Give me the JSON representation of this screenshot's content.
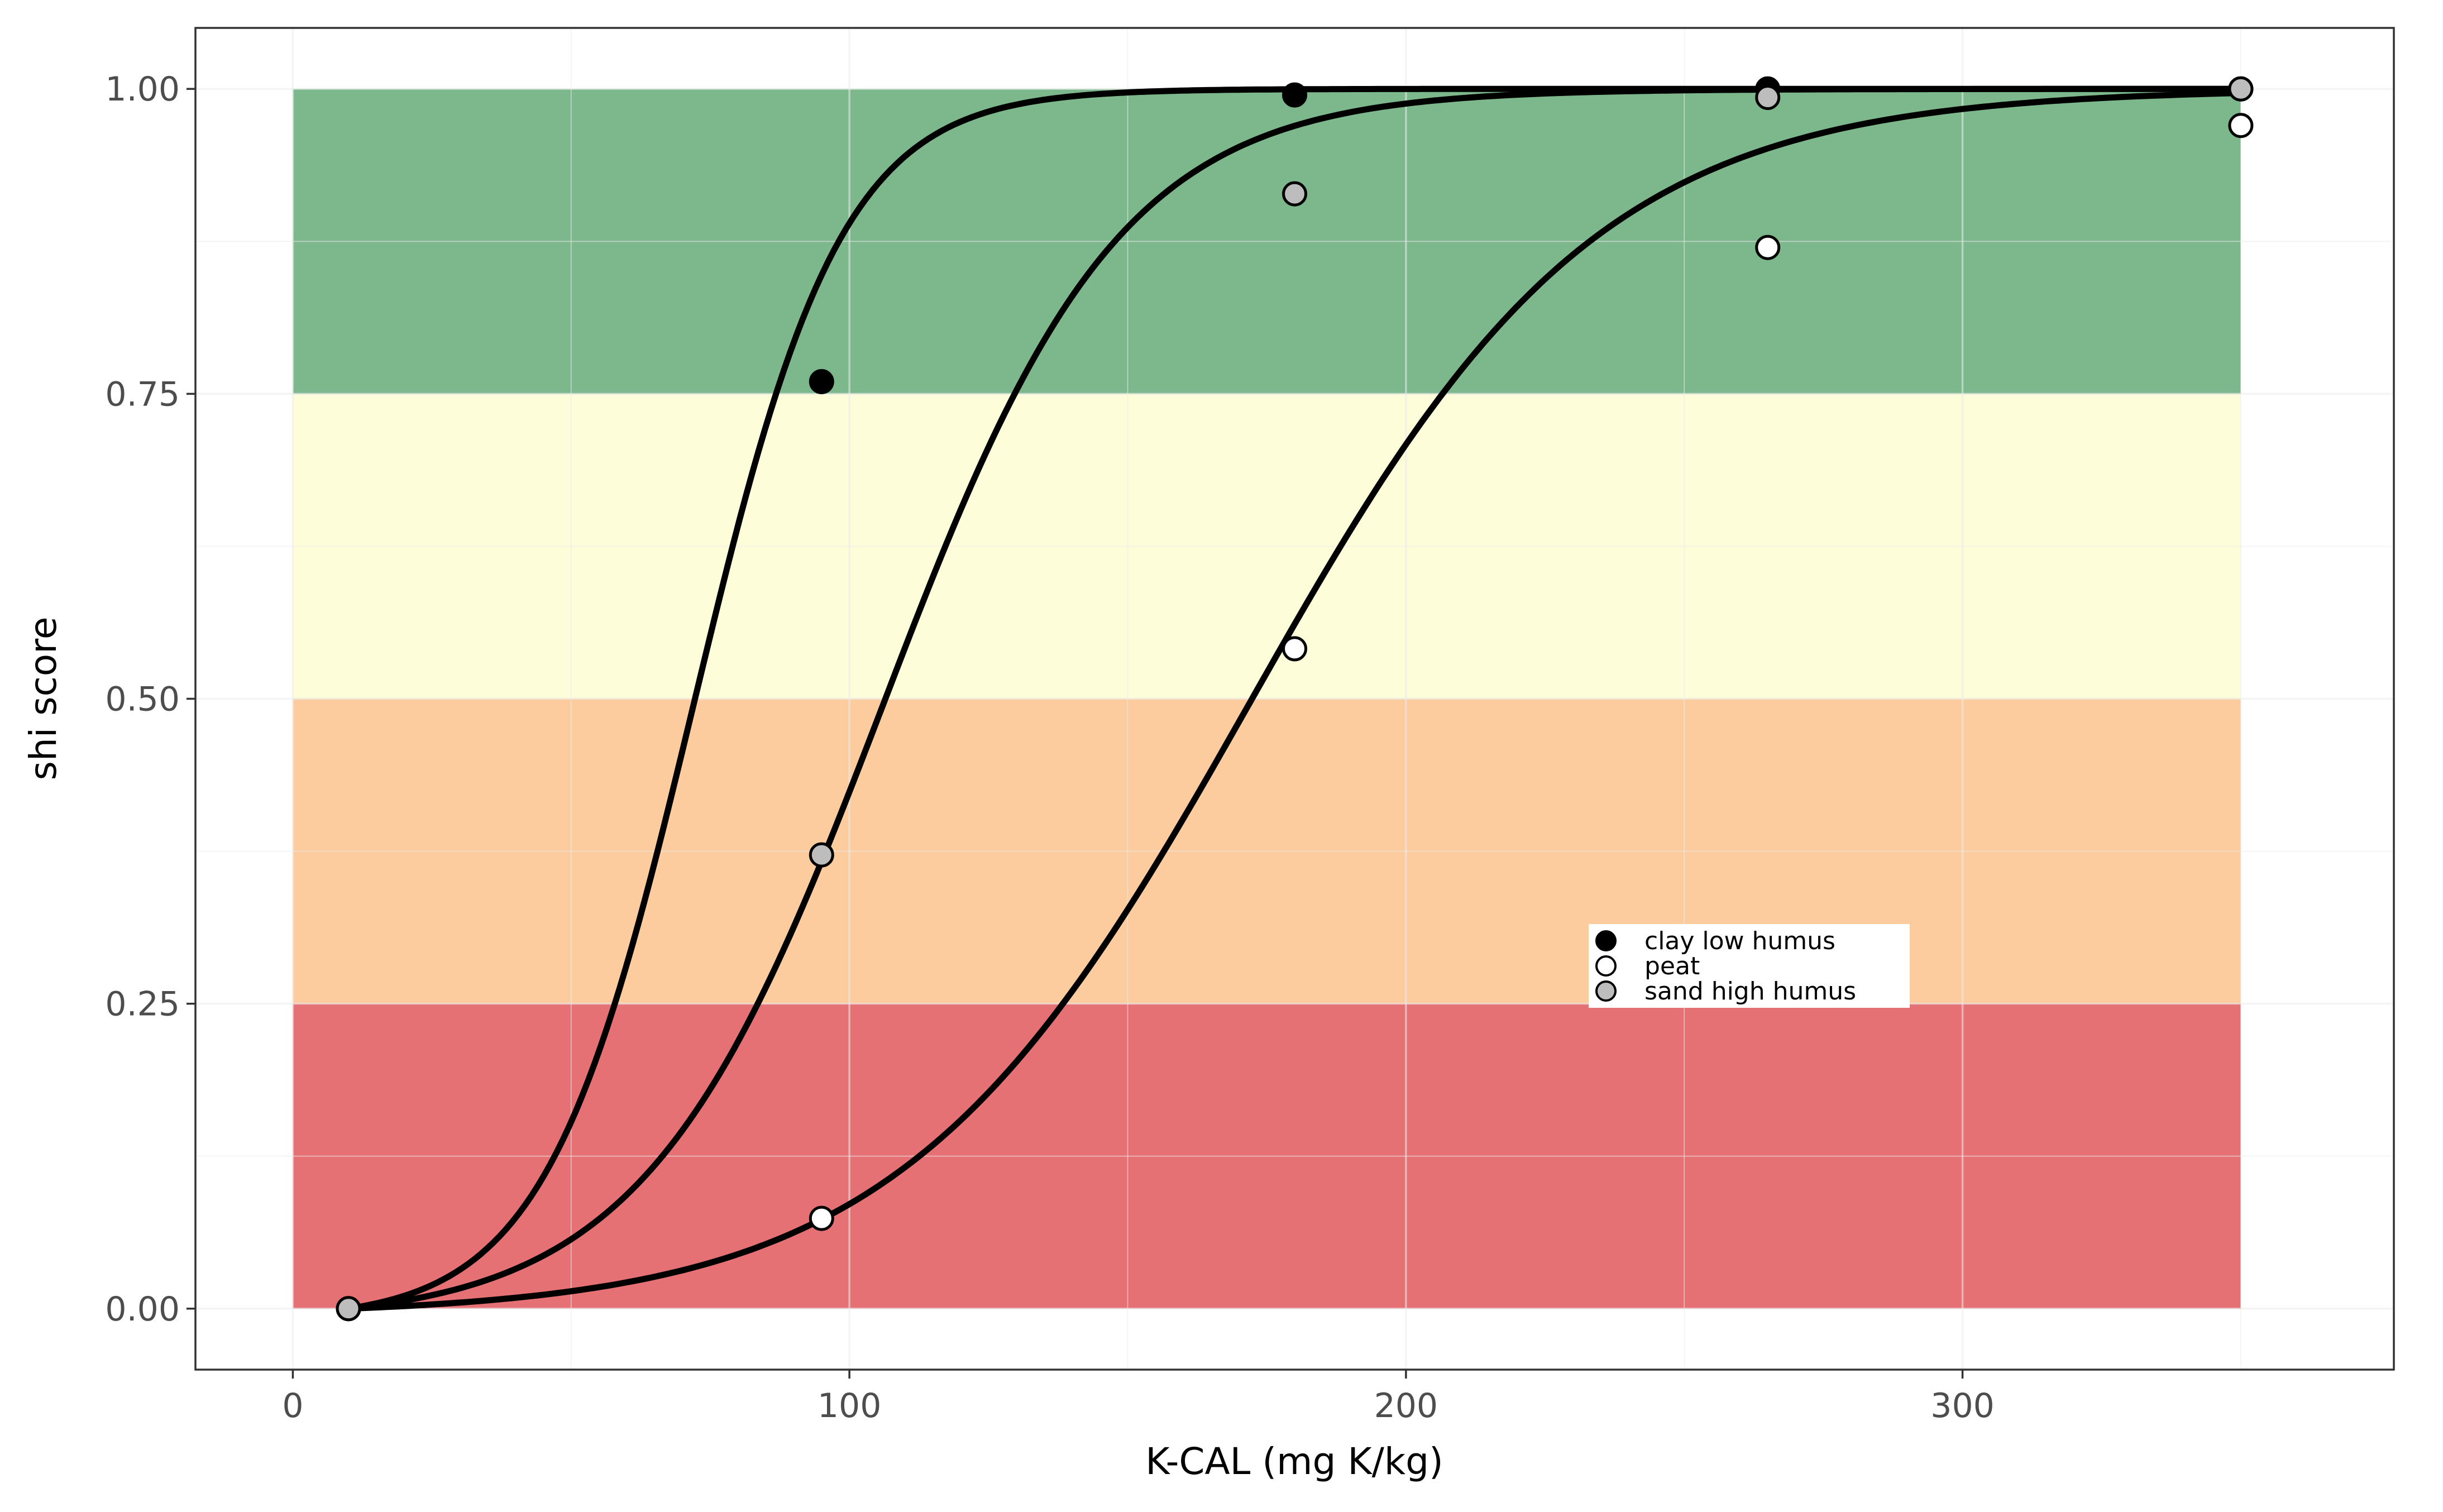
{
  "chart_data": {
    "type": "line",
    "title": "",
    "xlabel": "K-CAL (mg K/kg)",
    "ylabel": "shi score",
    "xlim": [
      -17.5,
      377.5
    ],
    "ylim": [
      -0.05,
      1.05
    ],
    "xticks": [
      0,
      100,
      200,
      300
    ],
    "xtick_labels": [
      "0",
      "100",
      "200",
      "300"
    ],
    "yticks": [
      0,
      0.25,
      0.5,
      0.75,
      1
    ],
    "ytick_labels": [
      "0.00",
      "0.25",
      "0.50",
      "0.75",
      "1.00"
    ],
    "grid": true,
    "legend_position": "inside, center-right",
    "bands": [
      {
        "ymin": 0.0,
        "ymax": 0.25,
        "xmin": 0,
        "xmax": 350,
        "color": "#e67175"
      },
      {
        "ymin": 0.25,
        "ymax": 0.5,
        "xmin": 0,
        "xmax": 350,
        "color": "#fccc9f"
      },
      {
        "ymin": 0.5,
        "ymax": 0.75,
        "xmin": 0,
        "xmax": 350,
        "color": "#fefdd9"
      },
      {
        "ymin": 0.75,
        "ymax": 1.0,
        "xmin": 0,
        "xmax": 350,
        "color": "#7db88c"
      }
    ],
    "curve_x_range": [
      10,
      350
    ],
    "series": [
      {
        "name": "clay low humus",
        "marker_fill": "#000000",
        "curve": {
          "midpoint": 72,
          "slope": 0.075
        },
        "points": [
          [
            10,
            0.0
          ],
          [
            95,
            0.76
          ],
          [
            180,
            0.995
          ],
          [
            265,
            1.0
          ],
          [
            350,
            1.0
          ]
        ]
      },
      {
        "name": "peat",
        "marker_fill": "#ffffff",
        "curve": {
          "midpoint": 172,
          "slope": 0.032
        },
        "points": [
          [
            10,
            0.0
          ],
          [
            95,
            0.074
          ],
          [
            180,
            0.541
          ],
          [
            265,
            0.87
          ],
          [
            350,
            0.97
          ]
        ]
      },
      {
        "name": "sand high humus",
        "marker_fill": "#bdbdbd",
        "curve": {
          "midpoint": 106,
          "slope": 0.047
        },
        "points": [
          [
            10,
            0.0
          ],
          [
            95,
            0.372
          ],
          [
            180,
            0.914
          ],
          [
            265,
            0.993
          ],
          [
            350,
            1.0
          ]
        ]
      }
    ],
    "colors": {
      "line": "#000000",
      "grid": "#ebebeb",
      "panel_border": "#333333"
    }
  }
}
